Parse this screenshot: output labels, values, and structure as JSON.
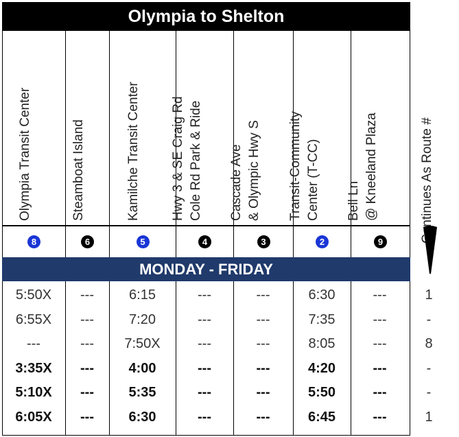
{
  "title": "Olympia to Shelton",
  "band": "MONDAY - FRIDAY",
  "columns": [
    {
      "line1": "Olympia Transit Center",
      "line2": "",
      "stop": "8",
      "color": "#1a36d6"
    },
    {
      "line1": "Steamboat Island",
      "line2": "",
      "stop": "6",
      "color": "#000000"
    },
    {
      "line1": "Kamilche Transit Center",
      "line2": "",
      "stop": "5",
      "color": "#1a36d6"
    },
    {
      "line1": "Hwy 3 &  SE Craig Rd",
      "line2": "Cole Rd Park & Ride",
      "stop": "4",
      "color": "#000000"
    },
    {
      "line1": "Cascade Ave",
      "line2": "& Olympic Hwy S",
      "stop": "3",
      "color": "#000000"
    },
    {
      "line1": "Transit-Community",
      "line2": "Center (T-CC)",
      "stop": "2",
      "color": "#1a36d6"
    },
    {
      "line1": "Bell Ln",
      "line2": "@ Kneeland  Plaza",
      "stop": "9",
      "color": "#000000"
    }
  ],
  "continues": {
    "label": "Continues  As  Route  #"
  },
  "rows": [
    {
      "cells": [
        "5:50X",
        "---",
        "6:15",
        "---",
        "---",
        "6:30",
        "---"
      ],
      "continues": "1",
      "bold": false
    },
    {
      "cells": [
        "6:55X",
        "---",
        "7:20",
        "---",
        "---",
        "7:35",
        "---"
      ],
      "continues": "-",
      "bold": false
    },
    {
      "cells": [
        "---",
        "---",
        "7:50X",
        "---",
        "---",
        "8:05",
        "---"
      ],
      "continues": "8",
      "bold": false
    },
    {
      "cells": [
        "3:35X",
        "---",
        "4:00",
        "---",
        "---",
        "4:20",
        "---"
      ],
      "continues": "-",
      "bold": true
    },
    {
      "cells": [
        "5:10X",
        "---",
        "5:35",
        "---",
        "---",
        "5:50",
        "---"
      ],
      "continues": "-",
      "bold": true
    },
    {
      "cells": [
        "6:05X",
        "---",
        "6:30",
        "---",
        "---",
        "6:45",
        "---"
      ],
      "continues": "1",
      "bold": true
    }
  ]
}
